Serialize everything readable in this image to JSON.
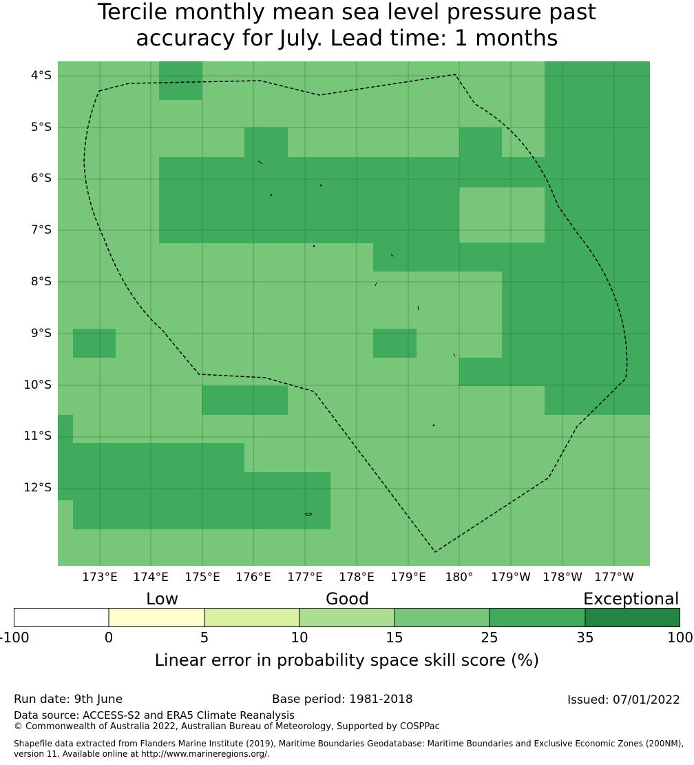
{
  "title": {
    "line1": "Tercile monthly mean sea level pressure past",
    "line2": "accuracy for July. Lead time: 1 months"
  },
  "map": {
    "lat_labels": [
      "4°S",
      "5°S",
      "6°S",
      "7°S",
      "8°S",
      "9°S",
      "10°S",
      "11°S",
      "12°S"
    ],
    "lon_labels": [
      "173°E",
      "174°E",
      "175°E",
      "176°E",
      "177°E",
      "178°E",
      "179°E",
      "180°",
      "179°W",
      "178°W",
      "177°W"
    ],
    "colors": {
      "light_green": "#78c679",
      "mid_green": "#41ab5d",
      "grid": "#1f6e2f",
      "boundary": "#000000"
    }
  },
  "colorbar": {
    "categories": [
      "Low",
      "Good",
      "Exceptional"
    ],
    "ticks": [
      "-100",
      "0",
      "5",
      "10",
      "15",
      "25",
      "35",
      "100"
    ],
    "colors": [
      "#ffffff",
      "#ffffcc",
      "#d9f0a3",
      "#addd8e",
      "#78c679",
      "#41ab5d",
      "#238443"
    ],
    "label": "Linear error in probability space skill score (%)"
  },
  "footer": {
    "run_date": "Run date: 9th June",
    "base_period": "Base period: 1981-2018",
    "issued": "Issued: 07/01/2022",
    "data_source": "Data source: ACCESS-S2 and ERA5 Climate Reanalysis",
    "copyright": "© Commonwealth of Australia 2022, Australian Bureau of Meteorology, Supported by COSPPac",
    "shapefile_line1": "Shapefile data extracted from Flanders Marine Institute (2019), Maritime Boundaries Geodatabase: Maritime Boundaries and Exclusive Economic Zones (200NM),",
    "shapefile_line2": "version 11. Available online at http://www.marineregions.org/."
  }
}
